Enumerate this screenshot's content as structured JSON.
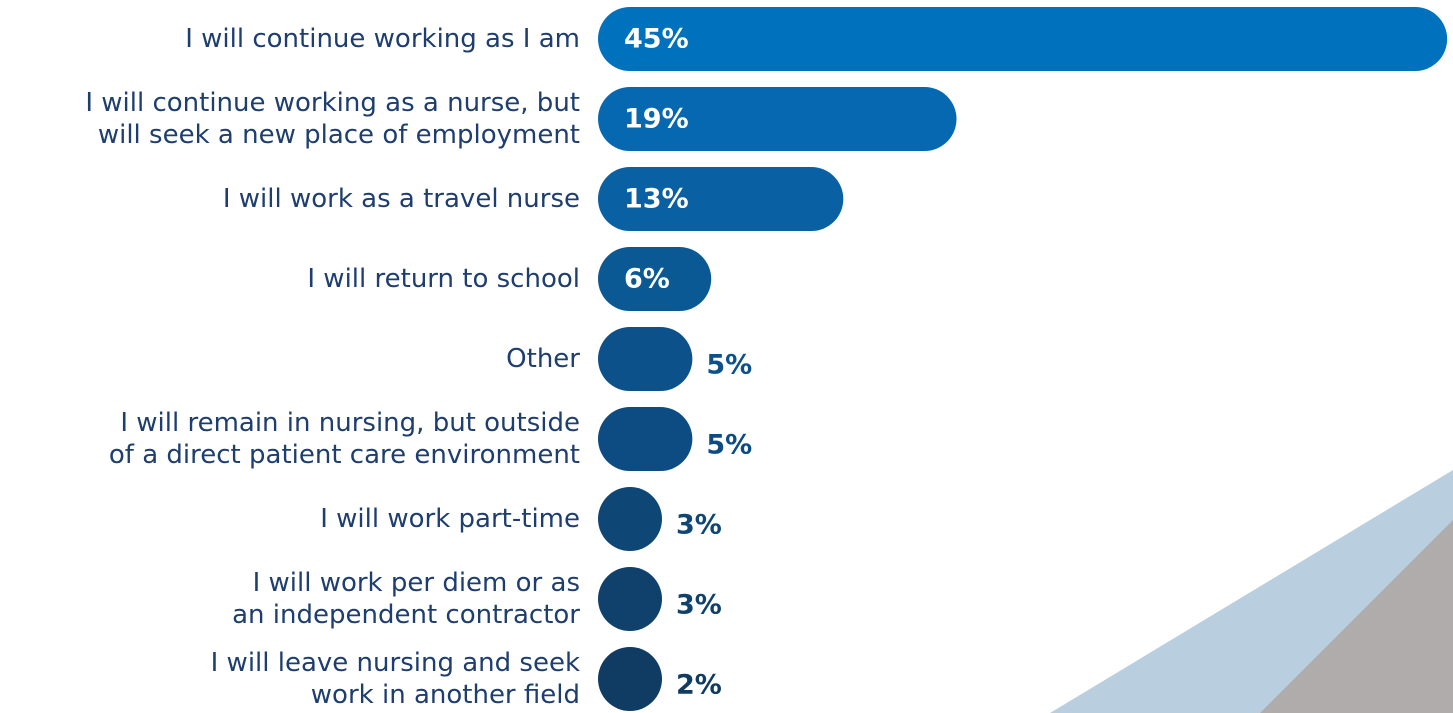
{
  "chart_data": {
    "type": "bar",
    "orientation": "horizontal",
    "categories": [
      "I will continue working as I am",
      "I will continue working as a nurse, but\nwill seek a new place of employment",
      "I will work as a travel nurse",
      "I will return to school",
      "Other",
      "I will remain in nursing, but outside\nof a direct patient care environment",
      "I will work part-time",
      "I will work per diem or as\nan independent contractor",
      "I will leave nursing and seek\nwork in another field"
    ],
    "values": [
      45,
      19,
      13,
      6,
      5,
      5,
      3,
      3,
      2
    ],
    "value_labels": [
      "45%",
      "19%",
      "13%",
      "6%",
      "5%",
      "5%",
      "3%",
      "3%",
      "2%"
    ],
    "colors": [
      "#0071bc",
      "#0568b0",
      "#0960a3",
      "#0a5894",
      "#0c518a",
      "#0d4c82",
      "#0e4676",
      "#0f416c",
      "#103b62"
    ]
  }
}
